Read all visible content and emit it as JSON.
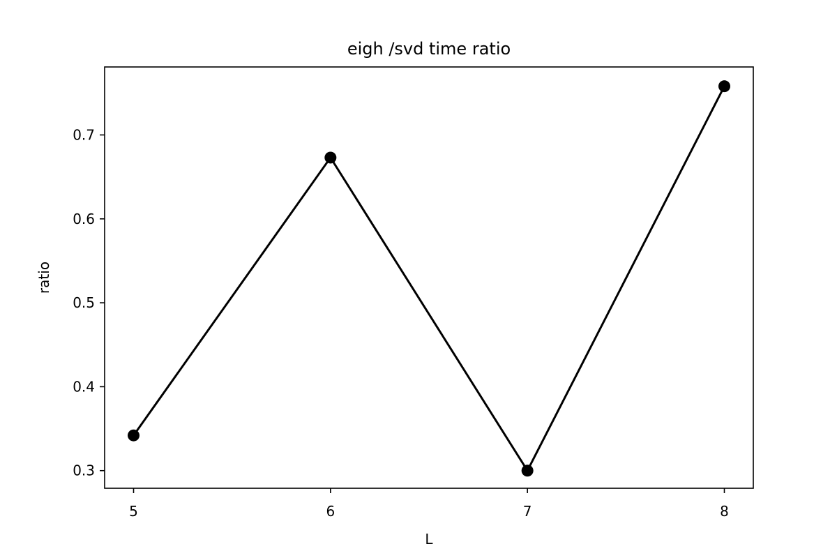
{
  "chart_data": {
    "type": "line",
    "title": "eigh /svd time ratio",
    "xlabel": "L",
    "ylabel": "ratio",
    "x": [
      5,
      6,
      7,
      8
    ],
    "series": [
      {
        "values": [
          0.342,
          0.673,
          0.3,
          0.758
        ]
      }
    ],
    "xticks": [
      5,
      6,
      7,
      8
    ],
    "yticks": [
      0.3,
      0.4,
      0.5,
      0.6,
      0.7
    ],
    "xticklabels": [
      "5",
      "6",
      "7",
      "8"
    ],
    "yticklabels": [
      "0.3",
      "0.4",
      "0.5",
      "0.6",
      "0.7"
    ],
    "xlim": [
      4.853,
      8.147
    ],
    "ylim": [
      0.279,
      0.781
    ],
    "grid": false,
    "legend": "none",
    "colors": {
      "line": "#000000",
      "marker": "#000000"
    }
  }
}
